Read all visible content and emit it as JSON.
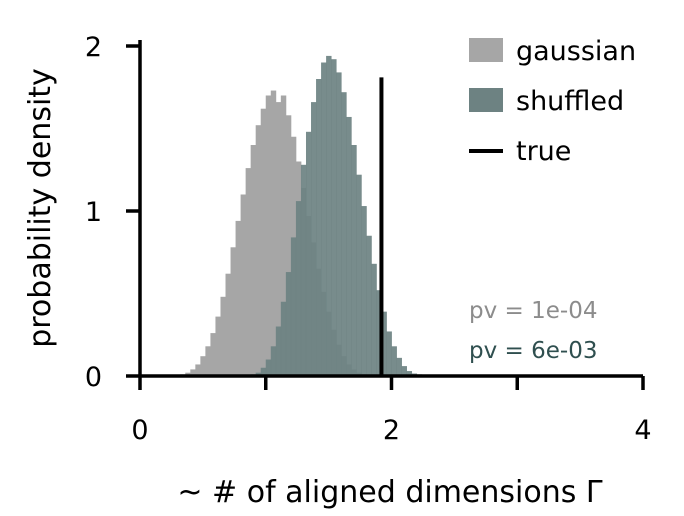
{
  "chart_data": {
    "type": "histogram",
    "xlabel": "~ # of aligned dimensions Γ",
    "ylabel": "probability density",
    "xlim": [
      0,
      4
    ],
    "ylim": [
      0,
      2
    ],
    "x_ticks": [
      0,
      1,
      2,
      3,
      4
    ],
    "x_tick_labels": [
      "0",
      "",
      "2",
      "",
      "4"
    ],
    "y_ticks": [
      0,
      1,
      2
    ],
    "y_tick_labels": [
      "0",
      "1",
      "2"
    ],
    "grid": false,
    "legend_position": "top-right",
    "bin_width": 0.04,
    "series": [
      {
        "name": "gaussian",
        "kind": "histogram",
        "color": "#a6a6a6",
        "bin_start": 0.32,
        "values": [
          0.01,
          0.02,
          0.04,
          0.07,
          0.12,
          0.18,
          0.26,
          0.36,
          0.48,
          0.62,
          0.78,
          0.94,
          1.1,
          1.26,
          1.4,
          1.52,
          1.62,
          1.7,
          1.73,
          1.66,
          1.7,
          1.58,
          1.45,
          1.3,
          1.14,
          0.97,
          0.81,
          0.65,
          0.51,
          0.39,
          0.28,
          0.19,
          0.12,
          0.07,
          0.04,
          0.02,
          0.01,
          0.005
        ]
      },
      {
        "name": "shuffled",
        "kind": "histogram",
        "color": "#6d8282",
        "bin_start": 0.88,
        "values": [
          0.01,
          0.02,
          0.05,
          0.1,
          0.18,
          0.3,
          0.45,
          0.63,
          0.84,
          1.06,
          1.28,
          1.48,
          1.66,
          1.8,
          1.9,
          1.94,
          1.92,
          1.84,
          1.72,
          1.57,
          1.4,
          1.22,
          1.03,
          0.85,
          0.68,
          0.52,
          0.39,
          0.27,
          0.18,
          0.11,
          0.06,
          0.03,
          0.015,
          0.01,
          0.005
        ]
      },
      {
        "name": "true",
        "kind": "vline",
        "color": "#000000",
        "x": 1.92,
        "y_max": 1.81
      }
    ],
    "annotations": [
      {
        "text": "pv = 1e-04",
        "color": "#8c8c8c"
      },
      {
        "text": "pv = 6e-03",
        "color": "#2f4f4f"
      }
    ]
  }
}
